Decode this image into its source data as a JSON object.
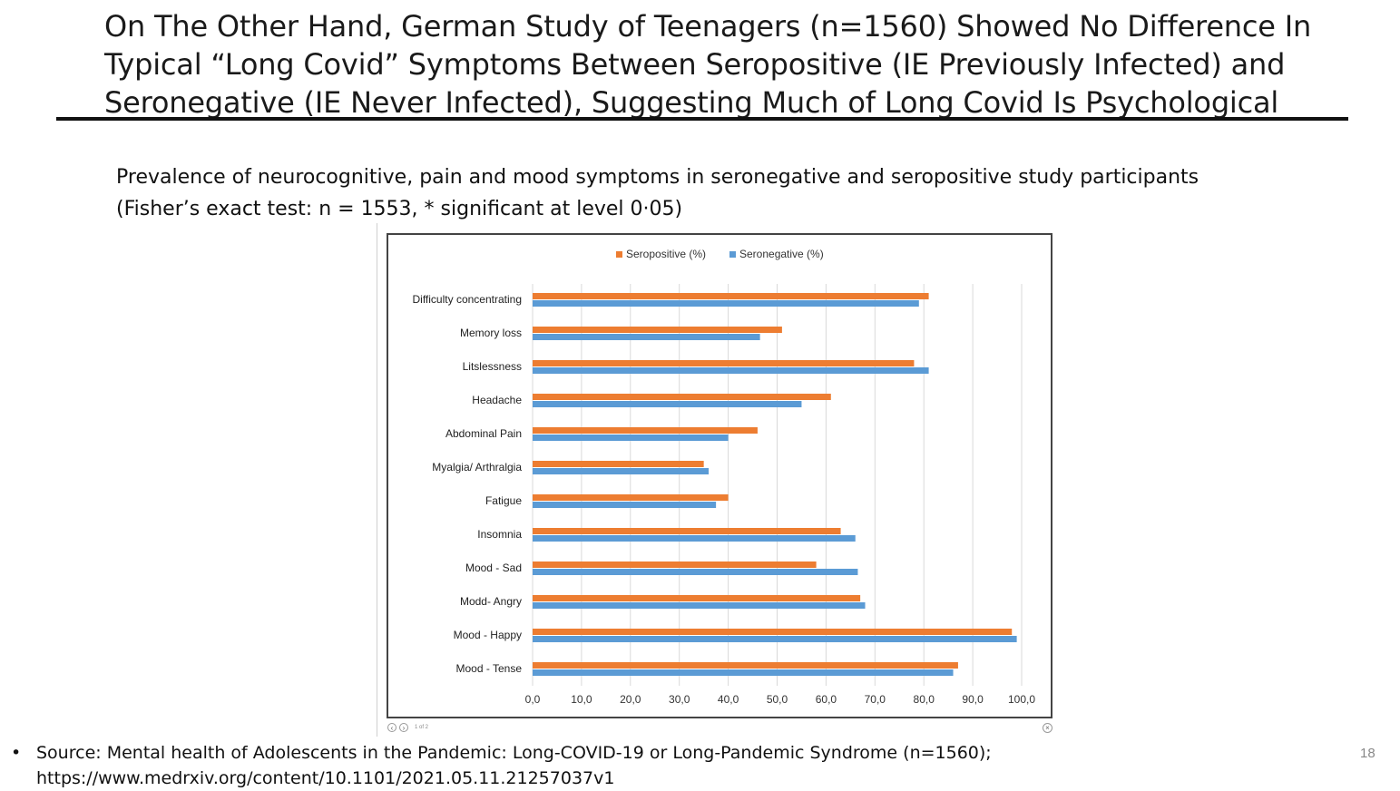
{
  "slide": {
    "title": "On The Other Hand, German Study of Teenagers (n=1560) Showed No Difference In Typical “Long Covid” Symptoms Between Seropositive (IE Previously Infected) and Seronegative (IE Never Infected), Suggesting Much of Long Covid Is Psychological",
    "caption_line1": "Prevalence of neurocognitive, pain and mood symptoms in seronegative and seropositive study participants",
    "caption_line2": "(Fisher’s exact test: n = 1553, * significant at level 0·05)",
    "source_bullet": "•",
    "source_line1": "Source: Mental health of Adolescents in the Pandemic: Long-COVID-19 or Long-Pandemic Syndrome (n=1560);",
    "source_line2": "https://www.medrxiv.org/content/10.1101/2021.05.11.21257037v1",
    "page_number": "18",
    "pdf_prev": "‹",
    "pdf_next": "›",
    "pdf_page_label": "1 of 2",
    "pdf_close": "×"
  },
  "colors": {
    "seropositive": "#ED7D31",
    "seronegative": "#5B9BD5",
    "gridline": "#d9d9d9"
  },
  "chart_data": {
    "type": "bar",
    "orientation": "horizontal",
    "categories": [
      "Difficulty concentrating",
      "Memory loss",
      "Litslessness",
      "Headache",
      "Abdominal Pain",
      "Myalgia/ Arthralgia",
      "Fatigue",
      "Insomnia",
      "Mood - Sad",
      "Modd- Angry",
      "Mood - Happy",
      "Mood - Tense"
    ],
    "series": [
      {
        "name": "Seropositive (%)",
        "values": [
          81.0,
          51.0,
          78.0,
          61.0,
          46.0,
          35.0,
          40.0,
          63.0,
          58.0,
          67.0,
          98.0,
          87.0
        ]
      },
      {
        "name": "Seronegative (%)",
        "values": [
          79.0,
          46.5,
          81.0,
          55.0,
          40.0,
          36.0,
          37.5,
          66.0,
          66.5,
          68.0,
          99.0,
          86.0
        ]
      }
    ],
    "xlim": [
      0,
      100
    ],
    "xticks": [
      "0,0",
      "10,0",
      "20,0",
      "30,0",
      "40,0",
      "50,0",
      "60,0",
      "70,0",
      "80,0",
      "90,0",
      "100,0"
    ],
    "grid": true,
    "legend_position": "top-center",
    "xlabel": "",
    "ylabel": ""
  }
}
